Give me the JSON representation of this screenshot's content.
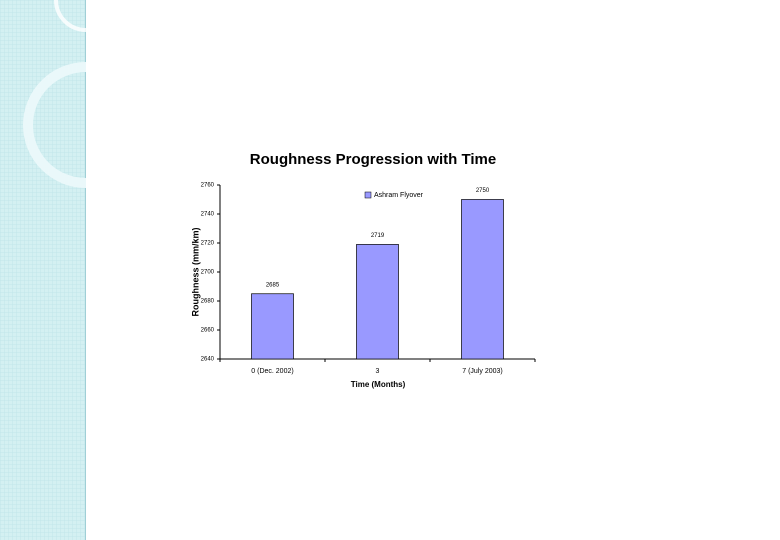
{
  "chart_data": {
    "type": "bar",
    "title": "Roughness Progression with Time",
    "x_label": "Time (Months)",
    "y_label": "Roughness (mm/km)",
    "categories": [
      "0 (Dec. 2002)",
      "3",
      "7 (July 2003)"
    ],
    "series": [
      {
        "name": "Ashram Flyover",
        "color": "#9999ff",
        "values": [
          2685,
          2719,
          2750
        ]
      }
    ],
    "ylim": [
      2640,
      2760
    ],
    "yticks": [
      2640,
      2660,
      2680,
      2700,
      2720,
      2740,
      2760
    ],
    "data_labels": true
  }
}
